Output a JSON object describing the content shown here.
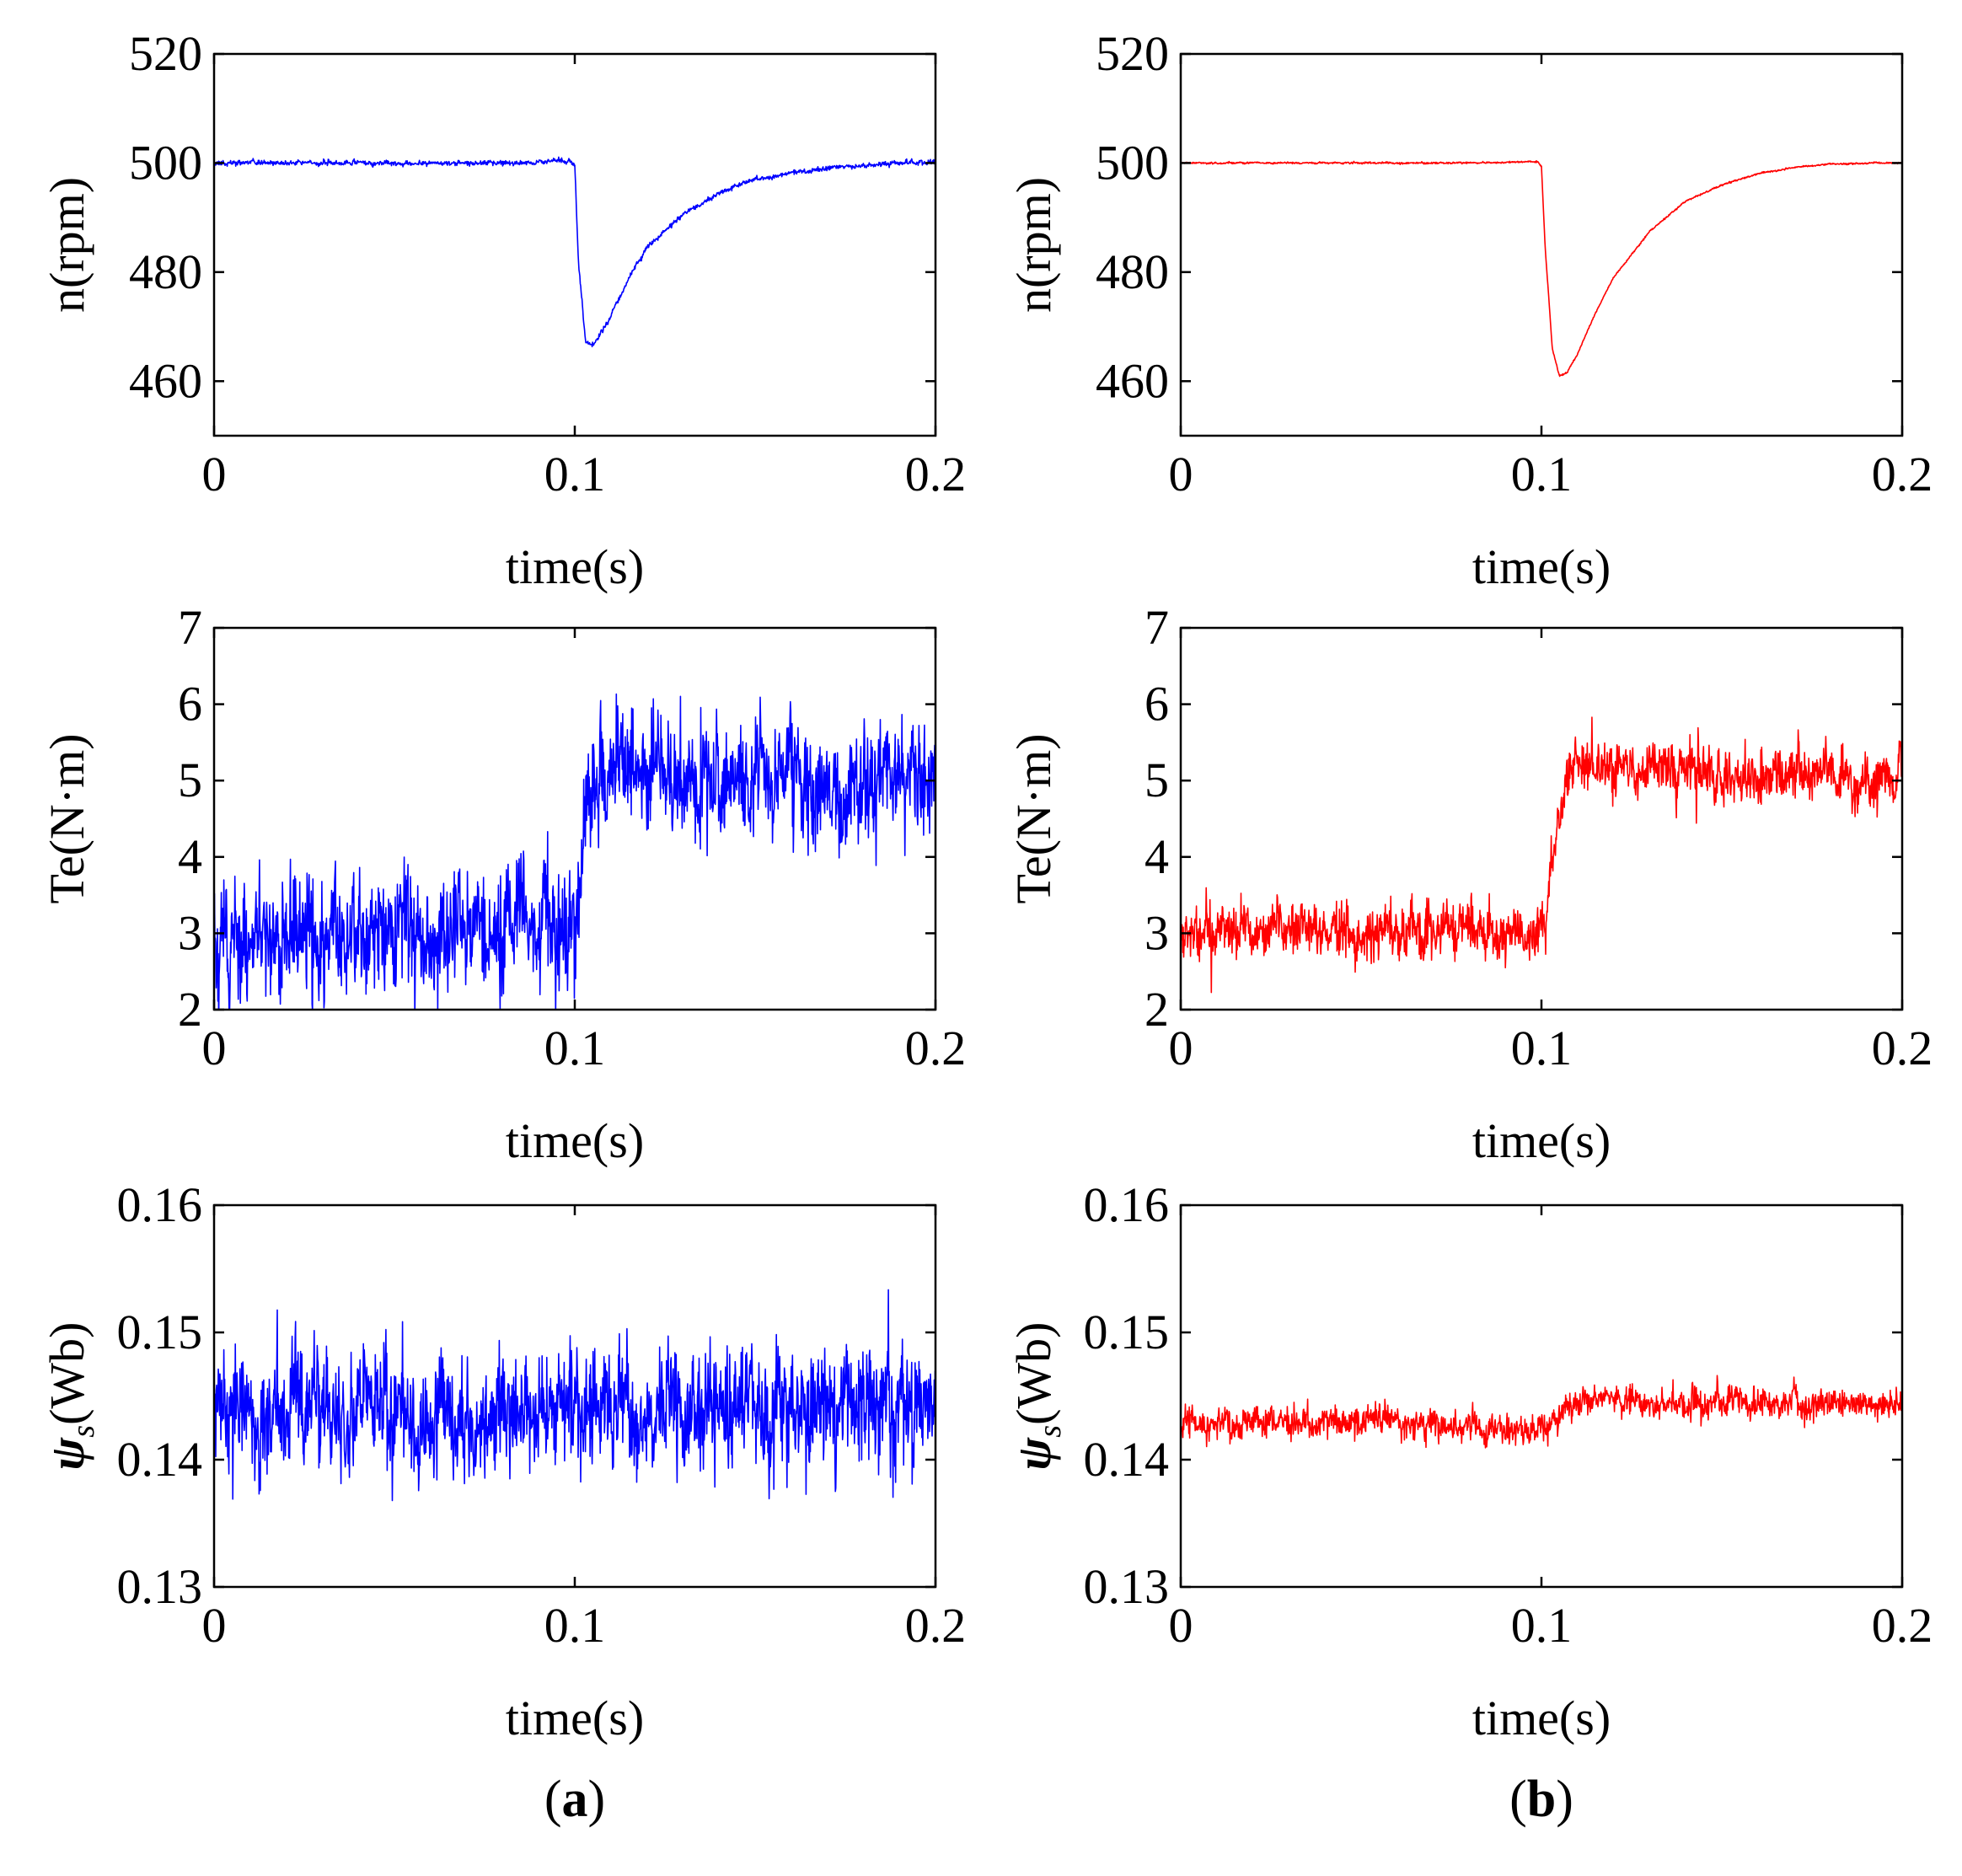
{
  "figure": {
    "panel_labels": {
      "a": {
        "open": "(",
        "letter": "a",
        "close": ")"
      },
      "b": {
        "open": "(",
        "letter": "b",
        "close": ")"
      }
    }
  },
  "chart_data": [
    {
      "id": "a-speed",
      "type": "line",
      "panel": "a",
      "xlabel": "time(s)",
      "ylabel": "n(rpm)",
      "xlim": [
        0,
        0.2
      ],
      "ylim": [
        450,
        520
      ],
      "xticks": [
        0,
        0.1,
        0.2
      ],
      "xtick_labels": [
        "0",
        "0.1",
        "0.2"
      ],
      "yticks": [
        460,
        480,
        500,
        520
      ],
      "ytick_labels": [
        "460",
        "480",
        "500",
        "520"
      ],
      "series": [
        {
          "name": "speed",
          "color": "#0000ff",
          "noise": 0.35,
          "seed": 11,
          "x": [
            0,
            0.02,
            0.04,
            0.06,
            0.08,
            0.099,
            0.1,
            0.101,
            0.103,
            0.105,
            0.108,
            0.11,
            0.115,
            0.12,
            0.13,
            0.14,
            0.15,
            0.16,
            0.17,
            0.18,
            0.19,
            0.2
          ],
          "values": [
            500,
            500,
            500,
            500,
            500,
            500.4,
            499.5,
            482,
            467,
            466.5,
            469.5,
            472,
            479,
            484.5,
            490.5,
            494.5,
            497,
            498.3,
            499,
            499.6,
            500,
            500
          ]
        }
      ]
    },
    {
      "id": "b-speed",
      "type": "line",
      "panel": "b",
      "xlabel": "time(s)",
      "ylabel": "n(rpm)",
      "xlim": [
        0,
        0.2
      ],
      "ylim": [
        450,
        520
      ],
      "xticks": [
        0,
        0.1,
        0.2
      ],
      "xtick_labels": [
        "0",
        "0.1",
        "0.2"
      ],
      "yticks": [
        460,
        480,
        500,
        520
      ],
      "ytick_labels": [
        "460",
        "480",
        "500",
        "520"
      ],
      "series": [
        {
          "name": "speed",
          "color": "#ff0000",
          "noise": 0.12,
          "seed": 23,
          "x": [
            0,
            0.02,
            0.04,
            0.06,
            0.08,
            0.099,
            0.1,
            0.101,
            0.103,
            0.105,
            0.107,
            0.11,
            0.115,
            0.12,
            0.13,
            0.14,
            0.15,
            0.16,
            0.17,
            0.18,
            0.19,
            0.2
          ],
          "values": [
            500,
            500,
            500,
            500,
            500,
            500.2,
            499.5,
            485,
            466,
            461,
            461.5,
            465,
            472.5,
            479,
            487.5,
            493,
            496,
            498,
            499.2,
            499.8,
            500,
            500
          ]
        }
      ]
    },
    {
      "id": "a-torque",
      "type": "line",
      "panel": "a",
      "xlabel": "time(s)",
      "ylabel": "Te(N·m)",
      "xlim": [
        0,
        0.2
      ],
      "ylim": [
        2,
        7
      ],
      "xticks": [
        0,
        0.1,
        0.2
      ],
      "xtick_labels": [
        "0",
        "0.1",
        "0.2"
      ],
      "yticks": [
        2,
        3,
        4,
        5,
        6,
        7
      ],
      "ytick_labels": [
        "2",
        "3",
        "4",
        "5",
        "6",
        "7"
      ],
      "series": [
        {
          "name": "torque",
          "color": "#0000ff",
          "noise": 0.6,
          "seed": 37,
          "x": [
            0,
            0.05,
            0.1,
            0.101,
            0.103,
            0.105,
            0.11,
            0.15,
            0.2
          ],
          "values": [
            3.0,
            3.0,
            3.0,
            3.4,
            4.4,
            5.0,
            5.1,
            5.05,
            5.0
          ]
        }
      ]
    },
    {
      "id": "b-torque",
      "type": "line",
      "panel": "b",
      "xlabel": "time(s)",
      "ylabel": "Te(N·m)",
      "xlim": [
        0,
        0.2
      ],
      "ylim": [
        2,
        7
      ],
      "xticks": [
        0,
        0.1,
        0.2
      ],
      "xtick_labels": [
        "0",
        "0.1",
        "0.2"
      ],
      "yticks": [
        2,
        3,
        4,
        5,
        6,
        7
      ],
      "ytick_labels": [
        "2",
        "3",
        "4",
        "5",
        "6",
        "7"
      ],
      "series": [
        {
          "name": "torque",
          "color": "#ff0000",
          "noise": 0.28,
          "seed": 41,
          "x": [
            0,
            0.05,
            0.1,
            0.101,
            0.103,
            0.105,
            0.108,
            0.112,
            0.15,
            0.2
          ],
          "values": [
            3.05,
            3.05,
            3.05,
            3.3,
            4.1,
            4.7,
            5.1,
            5.15,
            5.05,
            5.0
          ]
        }
      ]
    },
    {
      "id": "a-flux",
      "type": "line",
      "panel": "a",
      "xlabel": "time(s)",
      "ylabel": "ψs(Wb)",
      "ylabel_parts": {
        "symbol": "ψ",
        "sub": "s",
        "unit": "(Wb)"
      },
      "xlim": [
        0,
        0.2
      ],
      "ylim": [
        0.13,
        0.16
      ],
      "xticks": [
        0,
        0.1,
        0.2
      ],
      "xtick_labels": [
        "0",
        "0.1",
        "0.2"
      ],
      "yticks": [
        0.13,
        0.14,
        0.15,
        0.16
      ],
      "ytick_labels": [
        "0.13",
        "0.14",
        "0.15",
        "0.16"
      ],
      "series": [
        {
          "name": "flux",
          "color": "#0000ff",
          "noise": 0.0035,
          "seed": 53,
          "x": [
            0,
            0.1,
            0.2
          ],
          "values": [
            0.1435,
            0.144,
            0.1445
          ]
        }
      ]
    },
    {
      "id": "b-flux",
      "type": "line",
      "panel": "b",
      "xlabel": "time(s)",
      "ylabel": "ψs(Wb)",
      "ylabel_parts": {
        "symbol": "ψ",
        "sub": "s",
        "unit": "(Wb)"
      },
      "xlim": [
        0,
        0.2
      ],
      "ylim": [
        0.13,
        0.16
      ],
      "xticks": [
        0,
        0.1,
        0.2
      ],
      "xtick_labels": [
        "0",
        "0.1",
        "0.2"
      ],
      "yticks": [
        0.13,
        0.14,
        0.15,
        0.16
      ],
      "ytick_labels": [
        "0.13",
        "0.14",
        "0.15",
        "0.16"
      ],
      "series": [
        {
          "name": "flux",
          "color": "#ff0000",
          "noise": 0.0009,
          "seed": 67,
          "x": [
            0,
            0.05,
            0.1,
            0.105,
            0.11,
            0.15,
            0.2
          ],
          "values": [
            0.1428,
            0.143,
            0.1425,
            0.1438,
            0.1448,
            0.1445,
            0.1442
          ]
        }
      ]
    }
  ]
}
